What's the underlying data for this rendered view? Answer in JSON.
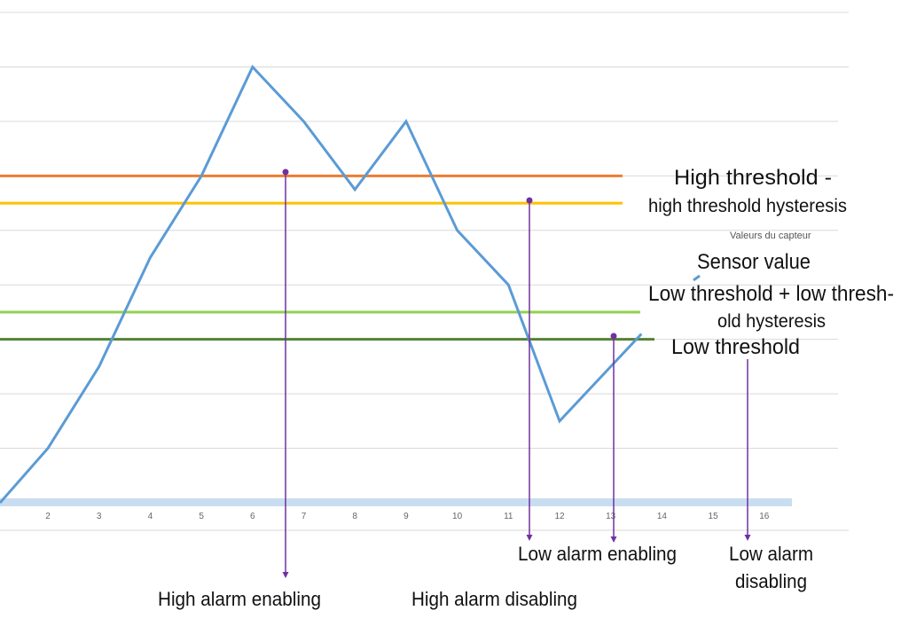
{
  "chart_data": {
    "type": "line",
    "x": [
      1,
      2,
      3,
      4,
      5,
      6,
      7,
      8,
      9,
      10,
      11,
      12,
      13,
      13.6
    ],
    "series": [
      {
        "name": "Sensor value",
        "values": [
          0,
          1,
          2.5,
          4.5,
          6,
          8,
          7,
          5.75,
          7,
          5,
          4,
          1.5,
          2.5,
          3.1
        ],
        "color": "#5b9bd5"
      }
    ],
    "thresholds": [
      {
        "key": "high",
        "value": 6,
        "color": "#ed7d31"
      },
      {
        "key": "high_minus_hyst",
        "value": 5.5,
        "color": "#ffc000"
      },
      {
        "key": "low_plus_hyst",
        "value": 3.5,
        "color": "#92d050"
      },
      {
        "key": "low",
        "value": 3,
        "color": "#548235"
      }
    ],
    "x_ticks": [
      "2",
      "3",
      "4",
      "5",
      "6",
      "7",
      "8",
      "9",
      "10",
      "11",
      "12",
      "13",
      "14",
      "15",
      "16"
    ],
    "ylim": [
      0,
      9
    ],
    "grid": true,
    "hidden_legend_text": "Valeurs du capteur"
  },
  "labels": {
    "high_threshold_line1": "High threshold -",
    "high_threshold_line2": "high threshold hysteresis",
    "sensor_value": "Sensor value",
    "low_hyst_line1": "Low threshold + low thresh-",
    "low_hyst_line2": "old hysteresis",
    "low_threshold": "Low threshold"
  },
  "events": [
    {
      "label": "High alarm enabling",
      "x": 6.65
    },
    {
      "label": "High alarm disabling",
      "x": 11.4
    },
    {
      "label_lines": [
        "Low alarm enabling"
      ],
      "x": 13.1
    },
    {
      "label_lines": [
        "Low",
        "alarm",
        "disabling"
      ],
      "x": 15.7
    }
  ],
  "event_labels": {
    "high_enable": "High alarm enabling",
    "high_disable": "High alarm disabling",
    "low_enable": "Low alarm enabling",
    "low_disable_1": "Low alarm",
    "low_disable_2": "disabling"
  },
  "colors": {
    "marker": "#7030a0",
    "grid": "#d9d9d9",
    "axis_band": "#bdd7ee"
  }
}
